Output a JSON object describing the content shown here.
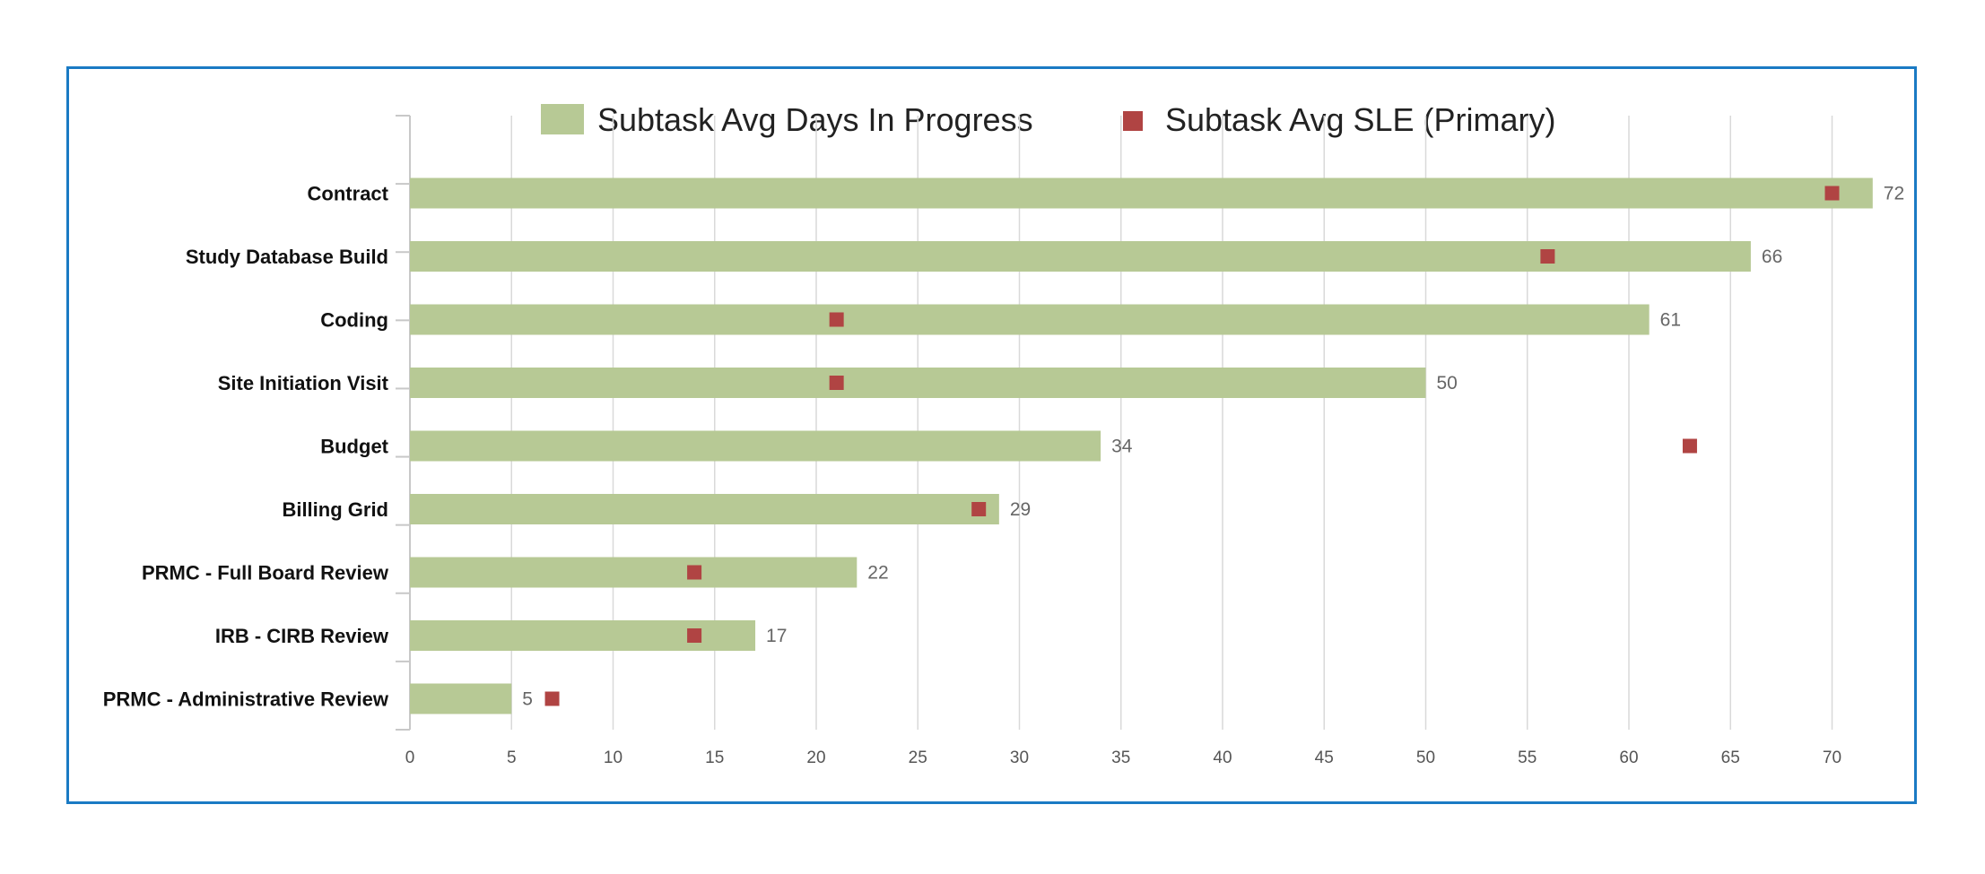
{
  "chart_data": {
    "type": "bar",
    "orientation": "horizontal",
    "categories": [
      "Contract",
      "Study Database Build",
      "Coding",
      "Site Initiation Visit",
      "Budget",
      "Billing Grid",
      "PRMC - Full Board Review",
      "IRB - CIRB Review",
      "PRMC - Administrative Review"
    ],
    "series": [
      {
        "name": "Subtask Avg Days In Progress",
        "kind": "bar",
        "color": "#b7c995",
        "values": [
          72,
          66,
          61,
          50,
          34,
          29,
          22,
          17,
          5
        ]
      },
      {
        "name": "Subtask Avg SLE (Primary)",
        "kind": "marker",
        "color": "#b04443",
        "values": [
          70,
          56,
          21,
          21,
          63,
          28,
          14,
          14,
          7
        ]
      }
    ],
    "xlim": [
      0,
      72
    ],
    "xticks": [
      0,
      5,
      10,
      15,
      20,
      25,
      30,
      35,
      40,
      45,
      50,
      55,
      60,
      65,
      70
    ],
    "grid": true,
    "legend_position": "top-center",
    "data_labels": true
  },
  "colors": {
    "border": "#1a7ac4",
    "grid": "#d9d9d9",
    "axis": "#c8c8c8"
  }
}
